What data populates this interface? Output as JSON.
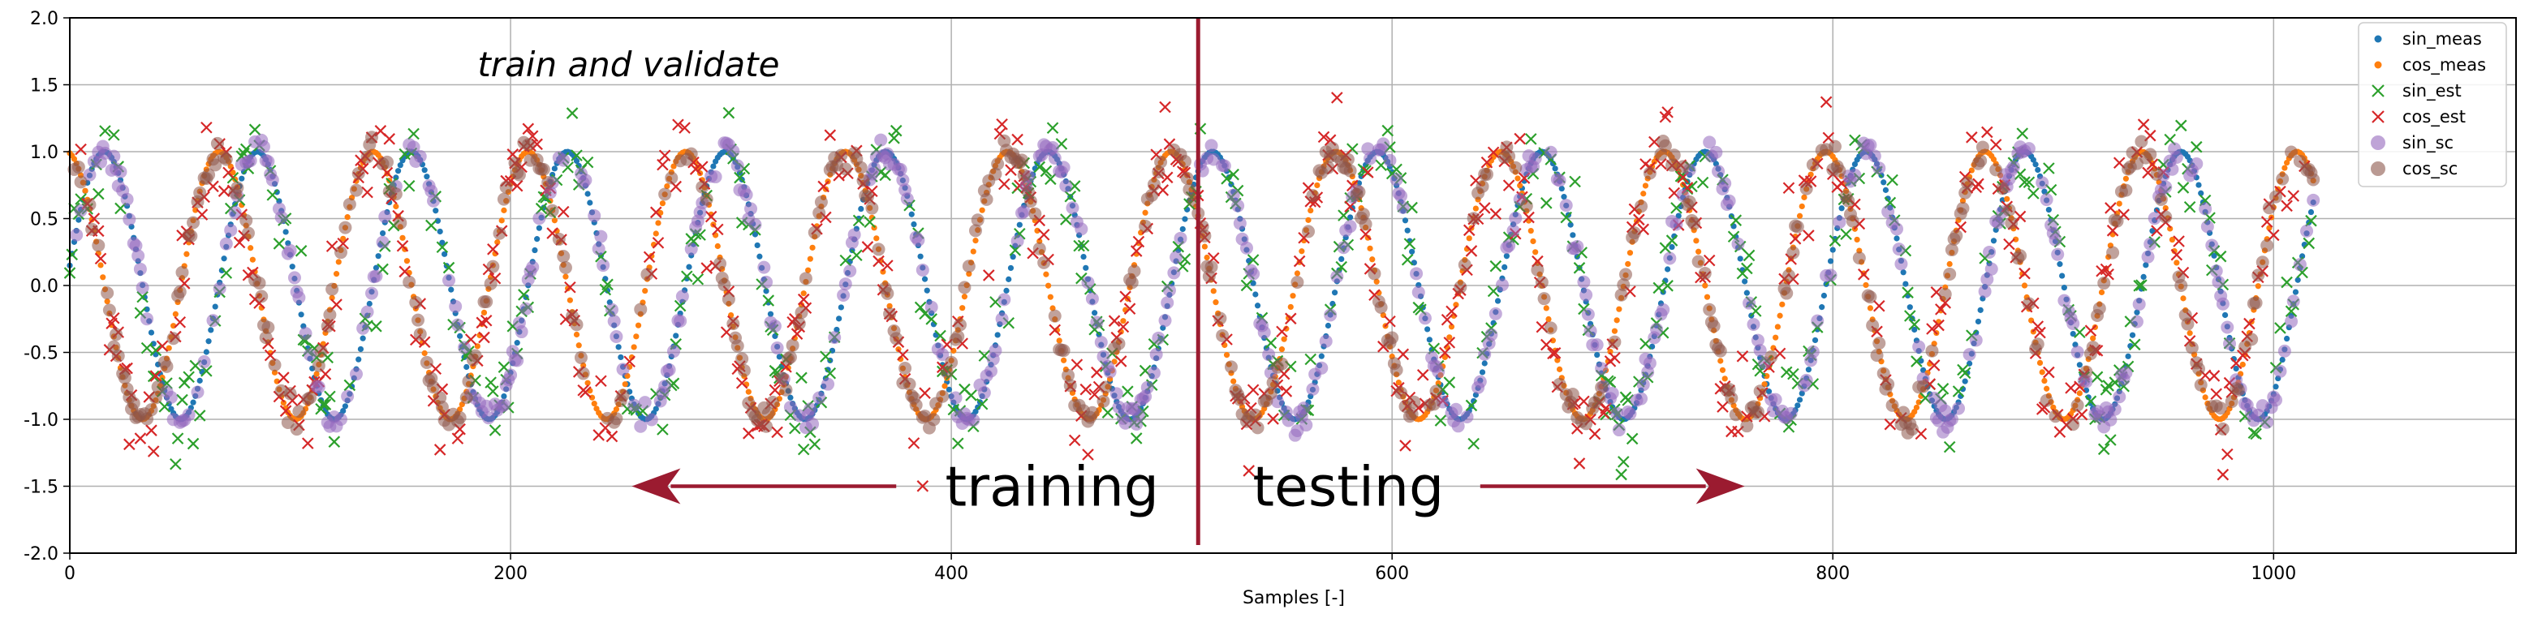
{
  "chart_data": {
    "type": "scatter",
    "title": "",
    "xlabel": "Samples [-]",
    "ylabel": "",
    "xlim": [
      0,
      1110
    ],
    "ylim": [
      -2.0,
      2.0
    ],
    "grid": true,
    "xticks": [
      0,
      200,
      400,
      600,
      800,
      1000
    ],
    "yticks": [
      -2.0,
      -1.5,
      -1.0,
      -0.5,
      0.0,
      0.5,
      1.0,
      1.5,
      2.0
    ],
    "legend_placement": "top-right",
    "series": [
      {
        "name": "sin_meas",
        "marker": "dot",
        "color": "#1f77b4",
        "x_start": 0,
        "x_end": 1018,
        "period": 72,
        "func": "sin",
        "noise": 0.0
      },
      {
        "name": "cos_meas",
        "marker": "dot",
        "color": "#ff7f0e",
        "x_start": 0,
        "x_end": 1018,
        "period": 72,
        "func": "cos",
        "noise": 0.0
      },
      {
        "name": "sin_est",
        "marker": "x",
        "color": "#2ca02c",
        "x_start": 0,
        "x_end": 1018,
        "period": 72,
        "func": "sin",
        "noise": 0.18
      },
      {
        "name": "cos_est",
        "marker": "x",
        "color": "#d62728",
        "x_start": 0,
        "x_end": 1018,
        "period": 72,
        "func": "cos",
        "noise": 0.18
      },
      {
        "name": "sin_sc",
        "marker": "circle",
        "color": "#9467bd",
        "x_start": 0,
        "x_end": 1018,
        "period": 72,
        "func": "sin",
        "noise": 0.05
      },
      {
        "name": "cos_sc",
        "marker": "circle",
        "color": "#8c564b",
        "x_start": 0,
        "x_end": 1018,
        "period": 72,
        "func": "cos",
        "noise": 0.05
      }
    ],
    "annotations": {
      "top_label": "train and validate",
      "train_label": "training",
      "test_label": "testing",
      "split_x": 512,
      "train_arrow": {
        "from_x": 375,
        "to_x": 255,
        "y": -1.5
      },
      "test_arrow": {
        "from_x": 640,
        "to_x": 760,
        "y": -1.5
      },
      "top_label_pos": {
        "x": 185,
        "y": 1.65
      }
    },
    "colors": {
      "split_line": "#9b1b30",
      "arrow": "#9b1b30",
      "grid": "#b0b0b0",
      "axis": "#000000"
    }
  }
}
